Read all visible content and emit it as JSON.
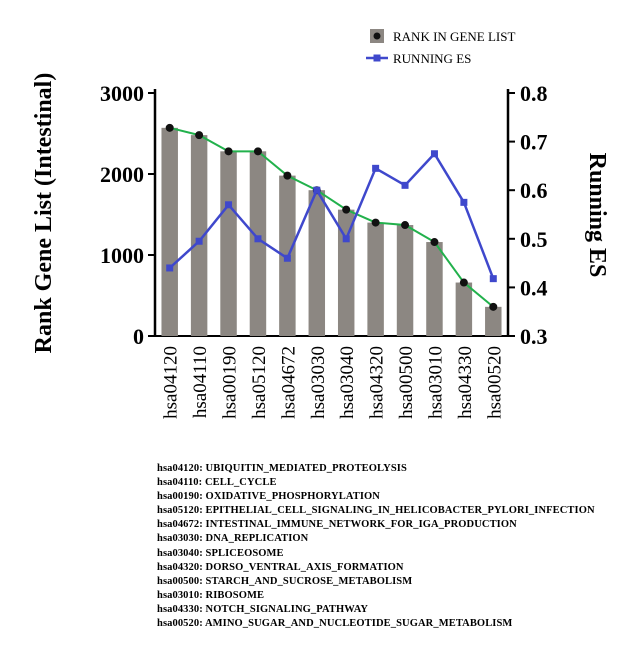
{
  "chart_data": {
    "type": "bar",
    "categories": [
      "hsa04120",
      "hsa04110",
      "hsa00190",
      "hsa05120",
      "hsa04672",
      "hsa03030",
      "hsa03040",
      "hsa04320",
      "hsa00500",
      "hsa03010",
      "hsa04330",
      "hsa00520"
    ],
    "series": [
      {
        "name": "RANK IN GENE LIST",
        "axis": "left",
        "marker": "circle",
        "values": [
          2570,
          2480,
          2280,
          2280,
          1980,
          1800,
          1560,
          1400,
          1370,
          1160,
          660,
          360
        ]
      },
      {
        "name": "RUNNING ES",
        "axis": "right",
        "marker": "square",
        "values": [
          0.44,
          0.495,
          0.57,
          0.5,
          0.46,
          0.6,
          0.5,
          0.645,
          0.61,
          0.675,
          0.575,
          0.418
        ]
      }
    ],
    "ylabel": "Rank Gene List (Intestinal)",
    "y2label": "Running ES",
    "ylim": [
      0,
      3000
    ],
    "y2lim": [
      0.3,
      0.8
    ],
    "yticks": [
      "0",
      "1000",
      "2000",
      "3000"
    ],
    "y2ticks": [
      "0.3",
      "0.4",
      "0.5",
      "0.6",
      "0.7",
      "0.8"
    ],
    "legend_position": "top-right",
    "grid": false,
    "colors": {
      "bar": "#8c8782",
      "bar_marker": "#111111",
      "rank_line": "#22b14c",
      "es_line": "#3f48cc"
    }
  },
  "notes": [
    "hsa04120: UBIQUITIN_MEDIATED_PROTEOLYSIS",
    "hsa04110: CELL_CYCLE",
    "hsa00190: OXIDATIVE_PHOSPHORYLATION",
    "hsa05120: EPITHELIAL_CELL_SIGNALING_IN_HELICOBACTER_PYLORI_INFECTION",
    "hsa04672: INTESTINAL_IMMUNE_NETWORK_FOR_IGA_PRODUCTION",
    "hsa03030: DNA_REPLICATION",
    "hsa03040: SPLICEOSOME",
    "hsa04320: DORSO_VENTRAL_AXIS_FORMATION",
    "hsa00500: STARCH_AND_SUCROSE_METABOLISM",
    "hsa03010: RIBOSOME",
    "hsa04330: NOTCH_SIGNALING_PATHWAY",
    "hsa00520: AMINO_SUGAR_AND_NUCLEOTIDE_SUGAR_METABOLISM"
  ]
}
